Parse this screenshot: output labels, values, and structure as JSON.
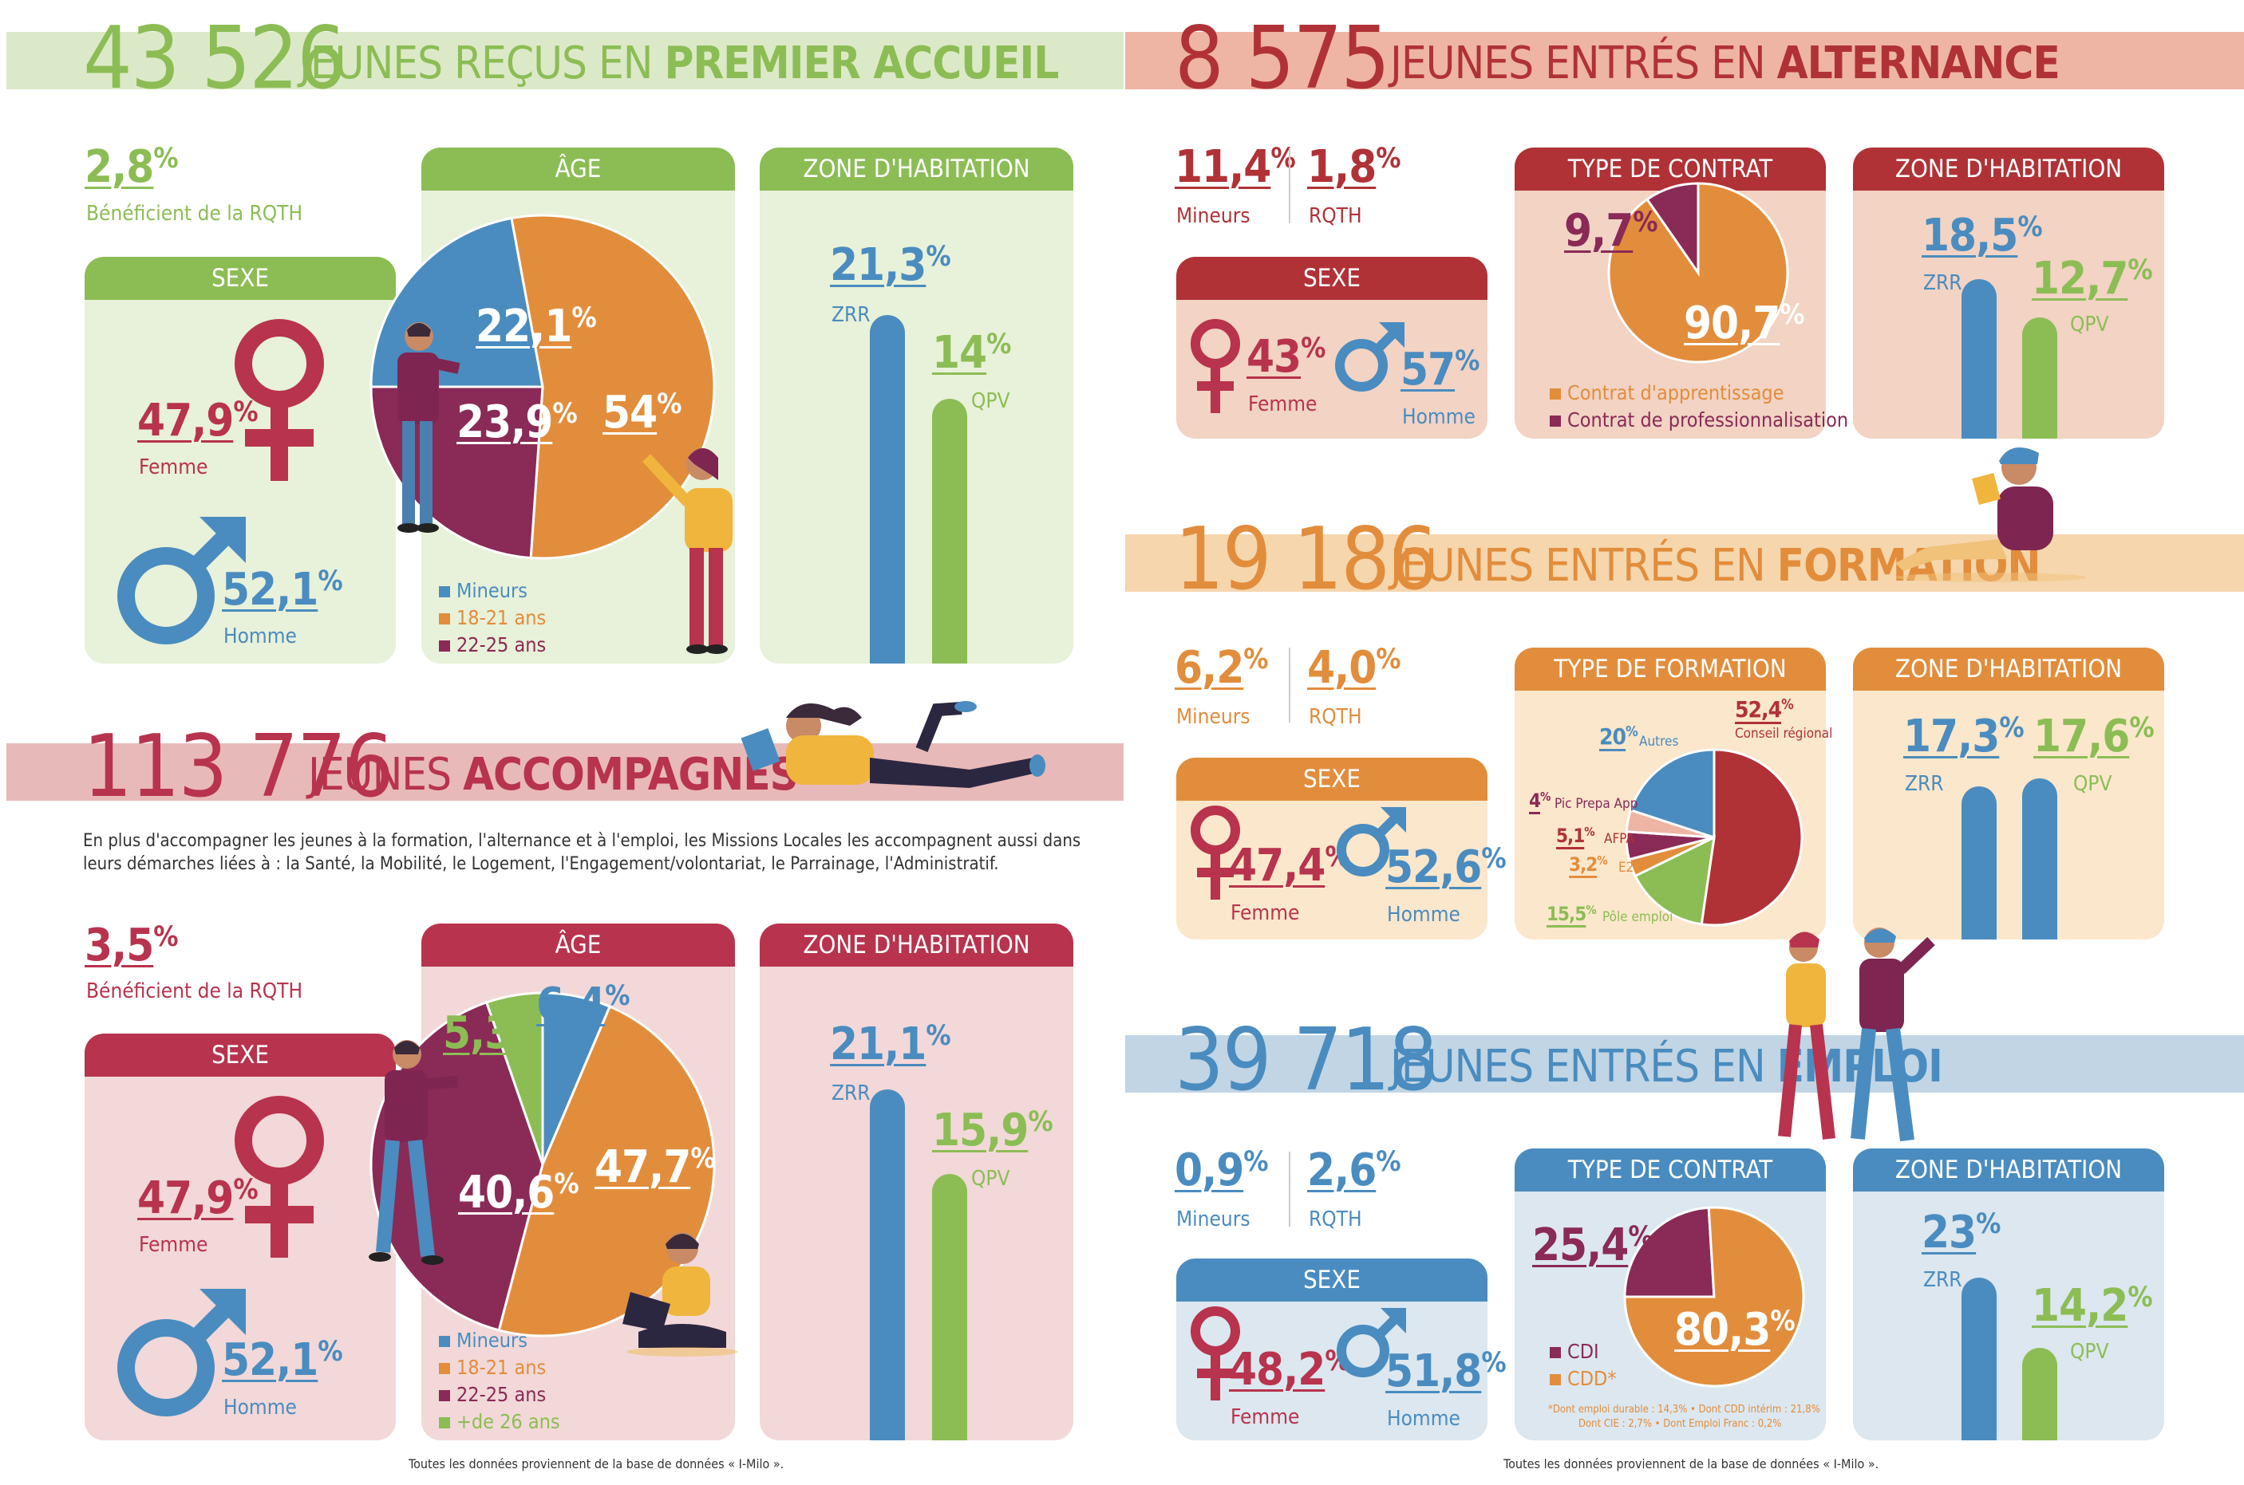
{
  "colors": {
    "green": "#8cbd55",
    "green_light": "#e8f1d9",
    "green_band": "#dce9c8",
    "crimson": "#b8334d",
    "crimson_light": "#f2d8d8",
    "crimson_band": "#e8b9b9",
    "brick": "#b03236",
    "brick_light": "#f2d3c4",
    "brick_band": "#eeb4a4",
    "orange": "#e28d3c",
    "orange_light": "#fbe7cc",
    "orange_band": "#f5d6ad",
    "steel": "#4a8cbf",
    "steel_light": "#dce7ef",
    "steel_band": "#c1d5e5",
    "blue": "#4a8cbf",
    "plum": "#8a2a56",
    "dark_red": "#b03236",
    "grey_text": "#333333"
  },
  "s1": {
    "number": "43 526",
    "title_pre": "JEUNES REÇUS EN ",
    "title_bold": "PREMIER ACCUEIL",
    "rqth_value": "2,8",
    "rqth_label": "Bénéficient de la RQTH",
    "sexe_title": "SEXE",
    "female_value": "47,9",
    "female_label": "Femme",
    "male_value": "52,1",
    "male_label": "Homme",
    "age_title": "ÂGE",
    "zone_title": "ZONE D'HABITATION",
    "zrr_value": "21,3",
    "zrr_label": "ZRR",
    "qpv_value": "14",
    "qpv_label": "QPV",
    "legend": [
      "Mineurs",
      "18-21 ans",
      "22-25 ans"
    ]
  },
  "s2": {
    "number": "113 776",
    "title_pre": "JEUNES ",
    "title_bold": "ACCOMPAGNÉS",
    "paragraph": "En plus d'accompagner les jeunes à la formation, l'alternance et à l'emploi, les Missions Locales les accompagnent aussi dans leurs démarches liées à : la Santé, la Mobilité, le Logement, l'Engagement/volontariat, le Parrainage, l'Administratif.",
    "rqth_value": "3,5",
    "rqth_label": "Bénéficient de la RQTH",
    "sexe_title": "SEXE",
    "female_value": "47,9",
    "female_label": "Femme",
    "male_value": "52,1",
    "male_label": "Homme",
    "age_title": "ÂGE",
    "zone_title": "ZONE D'HABITATION",
    "zrr_value": "21,1",
    "zrr_label": "ZRR",
    "qpv_value": "15,9",
    "qpv_label": "QPV",
    "legend": [
      "Mineurs",
      "18-21 ans",
      "22-25 ans",
      "+de 26 ans"
    ]
  },
  "s3": {
    "number": "8 575",
    "title_pre": "JEUNES ENTRÉS EN ",
    "title_bold": "ALTERNANCE",
    "minor_value": "11,4",
    "minor_label": "Mineurs",
    "rqth_value": "1,8",
    "rqth_label": "RQTH",
    "sexe_title": "SEXE",
    "female_value": "43",
    "female_label": "Femme",
    "male_value": "57",
    "male_label": "Homme",
    "contract_title": "TYPE DE CONTRAT",
    "zone_title": "ZONE D'HABITATION",
    "zrr_value": "18,5",
    "zrr_label": "ZRR",
    "qpv_value": "12,7",
    "qpv_label": "QPV",
    "legend": [
      "Contrat d'apprentissage",
      "Contrat de professionnalisation"
    ]
  },
  "s4": {
    "number": "19 186",
    "title_pre": "JEUNES ENTRÉS EN ",
    "title_bold": "FORMATION",
    "minor_value": "6,2",
    "minor_label": "Mineurs",
    "rqth_value": "4,0",
    "rqth_label": "RQTH",
    "sexe_title": "SEXE",
    "female_value": "47,4",
    "female_label": "Femme",
    "male_value": "52,6",
    "male_label": "Homme",
    "formation_title": "TYPE DE FORMATION",
    "zone_title": "ZONE D'HABITATION",
    "zrr_value": "17,3",
    "zrr_label": "ZRR",
    "qpv_value": "17,6",
    "qpv_label": "QPV"
  },
  "s5": {
    "number": "39 718",
    "title_pre": "JEUNES ENTRÉS EN ",
    "title_bold": "EMPLOI",
    "minor_value": "0,9",
    "minor_label": "Mineurs",
    "rqth_value": "2,6",
    "rqth_label": "RQTH",
    "sexe_title": "SEXE",
    "female_value": "48,2",
    "female_label": "Femme",
    "male_value": "51,8",
    "male_label": "Homme",
    "contract_title": "TYPE DE CONTRAT",
    "zone_title": "ZONE D'HABITATION",
    "zrr_value": "23",
    "zrr_label": "ZRR",
    "qpv_value": "14,2",
    "qpv_label": "QPV",
    "legend": [
      "CDI",
      "CDD*"
    ],
    "note_line1": "*Dont emploi durable : 14,3% • Dont CDD intérim : 21,8%",
    "note_line2": "Dont CIE : 2,7% • Dont Emploi Franc : 0,2%"
  },
  "footer_left": "Toutes les données proviennent de la base de données « I-Milo ».",
  "footer_right": "Toutes les données proviennent de la base de données « I-Milo ».",
  "chart_data": [
    {
      "type": "pie",
      "section": "premier accueil – âge",
      "categories": [
        "Mineurs",
        "18-21 ans",
        "22-25 ans"
      ],
      "values": [
        22.1,
        54,
        23.9
      ],
      "labels": [
        "22,1",
        "54",
        "23,9"
      ]
    },
    {
      "type": "bar",
      "section": "premier accueil – zone d'habitation",
      "categories": [
        "ZRR",
        "QPV"
      ],
      "values": [
        21.3,
        14
      ]
    },
    {
      "type": "pie",
      "section": "accompagnés – âge",
      "categories": [
        "Mineurs",
        "18-21 ans",
        "22-25 ans",
        "+de 26 ans"
      ],
      "values": [
        6.4,
        47.7,
        40.6,
        5.3
      ],
      "labels": [
        "6,4",
        "47,7",
        "40,6",
        "5,3"
      ]
    },
    {
      "type": "bar",
      "section": "accompagnés – zone d'habitation",
      "categories": [
        "ZRR",
        "QPV"
      ],
      "values": [
        21.1,
        15.9
      ]
    },
    {
      "type": "pie",
      "section": "alternance – type de contrat",
      "categories": [
        "Contrat d'apprentissage",
        "Contrat de professionnalisation"
      ],
      "values": [
        90.7,
        9.7
      ],
      "labels": [
        "90,7",
        "9,7"
      ]
    },
    {
      "type": "bar",
      "section": "alternance – zone d'habitation",
      "categories": [
        "ZRR",
        "QPV"
      ],
      "values": [
        18.5,
        12.7
      ]
    },
    {
      "type": "pie",
      "section": "formation – type de formation",
      "categories": [
        "Conseil régional",
        "Pôle emploi",
        "E2C",
        "AFPA",
        "Pic Prepa App",
        "Autres"
      ],
      "values": [
        52.4,
        15.5,
        3.2,
        5.1,
        4,
        20
      ],
      "labels": [
        "52,4",
        "15,5",
        "3,2",
        "5,1",
        "4",
        "20"
      ]
    },
    {
      "type": "bar",
      "section": "formation – zone d'habitation",
      "categories": [
        "ZRR",
        "QPV"
      ],
      "values": [
        17.3,
        17.6
      ]
    },
    {
      "type": "pie",
      "section": "emploi – type de contrat",
      "categories": [
        "CDI",
        "CDD*"
      ],
      "values": [
        25.4,
        80.3
      ],
      "labels": [
        "25,4",
        "80,3"
      ]
    },
    {
      "type": "bar",
      "section": "emploi – zone d'habitation",
      "categories": [
        "ZRR",
        "QPV"
      ],
      "values": [
        23,
        14.2
      ]
    }
  ]
}
